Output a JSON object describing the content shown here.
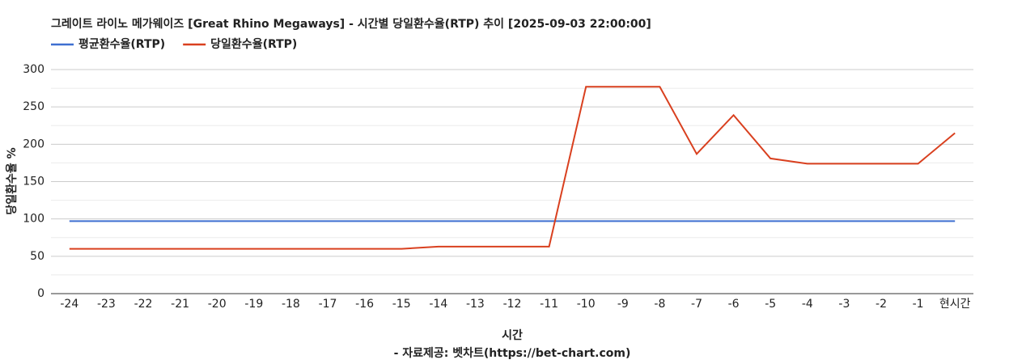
{
  "chart_data": {
    "type": "line",
    "title": "그레이트 라이노 메가웨이즈 [Great Rhino Megaways] - 시간별 당일환수율(RTP) 추이 [2025-09-03 22:00:00]",
    "x_label": "시간",
    "y_label": "당일환수율 %",
    "source": "- 자료제공: 벳차트(https://bet-chart.com)",
    "categories": [
      "-24",
      "-23",
      "-22",
      "-21",
      "-20",
      "-19",
      "-18",
      "-17",
      "-16",
      "-15",
      "-14",
      "-13",
      "-12",
      "-11",
      "-10",
      "-9",
      "-8",
      "-7",
      "-6",
      "-5",
      "-4",
      "-3",
      "-2",
      "-1",
      "현시간"
    ],
    "series": [
      {
        "name": "평균환수율(RTP)",
        "color": "#3e6fd1",
        "values": [
          97,
          97,
          97,
          97,
          97,
          97,
          97,
          97,
          97,
          97,
          97,
          97,
          97,
          97,
          97,
          97,
          97,
          97,
          97,
          97,
          97,
          97,
          97,
          97,
          97
        ]
      },
      {
        "name": "당일환수율(RTP)",
        "color": "#d9401f",
        "values": [
          60,
          60,
          60,
          60,
          60,
          60,
          60,
          60,
          60,
          60,
          63,
          63,
          63,
          63,
          277,
          277,
          277,
          187,
          239,
          181,
          174,
          174,
          174,
          174,
          215
        ]
      }
    ],
    "ylim": [
      0,
      300
    ],
    "yticks": [
      0,
      50,
      100,
      150,
      200,
      250,
      300
    ],
    "minor_yticks": [
      25,
      75,
      125,
      175,
      225,
      275
    ],
    "grid": true,
    "legend": "top-left"
  }
}
